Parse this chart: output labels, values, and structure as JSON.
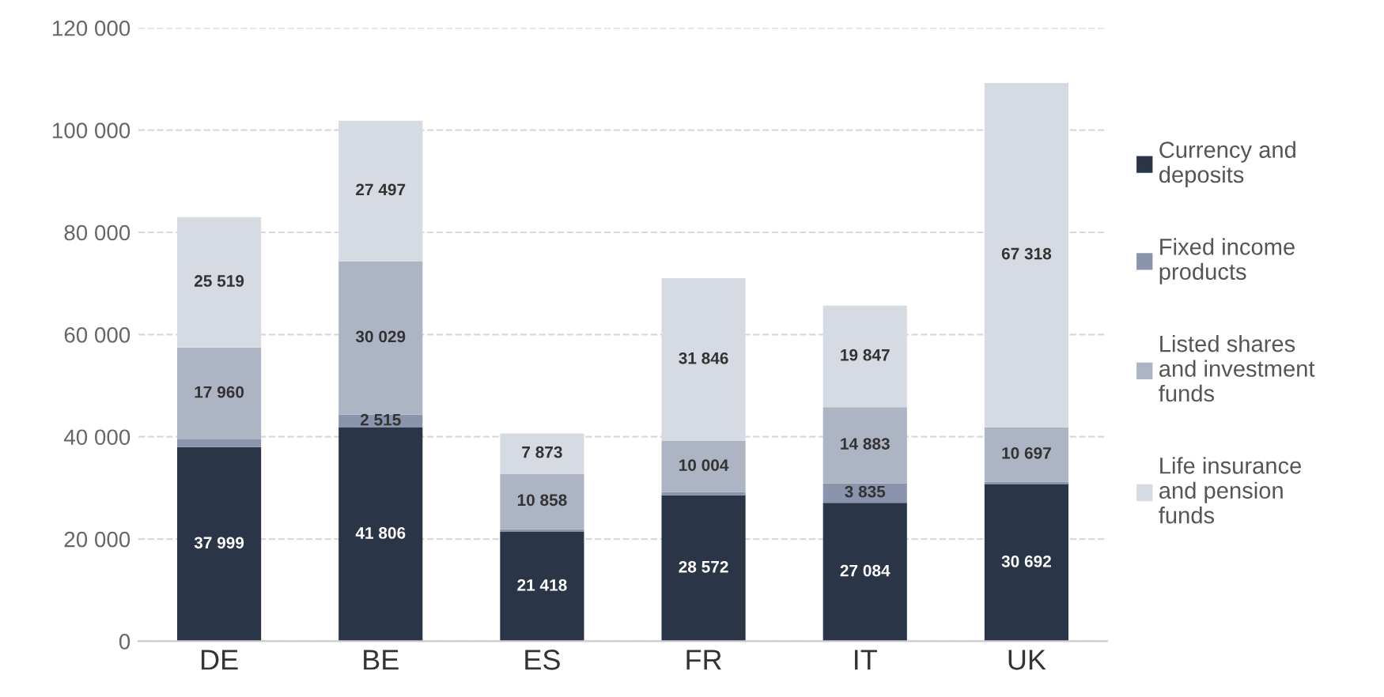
{
  "chart_data": {
    "type": "bar",
    "stacked": true,
    "categories": [
      "DE",
      "BE",
      "ES",
      "FR",
      "IT",
      "UK"
    ],
    "series": [
      {
        "name": "Currency and\ndeposits",
        "color": "#2b3548",
        "values": [
          37999,
          41806,
          21418,
          28572,
          27084,
          30692
        ],
        "value_labels": [
          "37 999",
          "41 806",
          "21 418",
          "28 572",
          "27 084",
          "30 692"
        ]
      },
      {
        "name": "Fixed income\nproducts",
        "color": "#8a95ad",
        "values": [
          1500,
          2515,
          500,
          600,
          3835,
          500
        ],
        "value_labels": [
          null,
          "2 515",
          null,
          null,
          "3 835",
          null
        ]
      },
      {
        "name": "Listed shares\nand investment\nfunds",
        "color": "#adb5c4",
        "values": [
          17960,
          30029,
          10858,
          10004,
          14883,
          10697
        ],
        "value_labels": [
          "17 960",
          "30 029",
          "10 858",
          "10 004",
          "14 883",
          "10 697"
        ]
      },
      {
        "name": "Life insurance\nand pension\nfunds",
        "color": "#d6dbe3",
        "values": [
          25519,
          27497,
          7873,
          31846,
          19847,
          67318
        ],
        "value_labels": [
          "25 519",
          "27 497",
          "7 873",
          "31 846",
          "19 847",
          "67 318"
        ]
      }
    ],
    "ylim": [
      0,
      120000
    ],
    "yticks": [
      {
        "value": 0,
        "label": "0"
      },
      {
        "value": 20000,
        "label": "20 000"
      },
      {
        "value": 40000,
        "label": "40 000"
      },
      {
        "value": 60000,
        "label": "60 000"
      },
      {
        "value": 80000,
        "label": "80 000"
      },
      {
        "value": 100000,
        "label": "100 000"
      },
      {
        "value": 120000,
        "label": "120 000"
      }
    ],
    "grid": "y",
    "legend": "right"
  }
}
